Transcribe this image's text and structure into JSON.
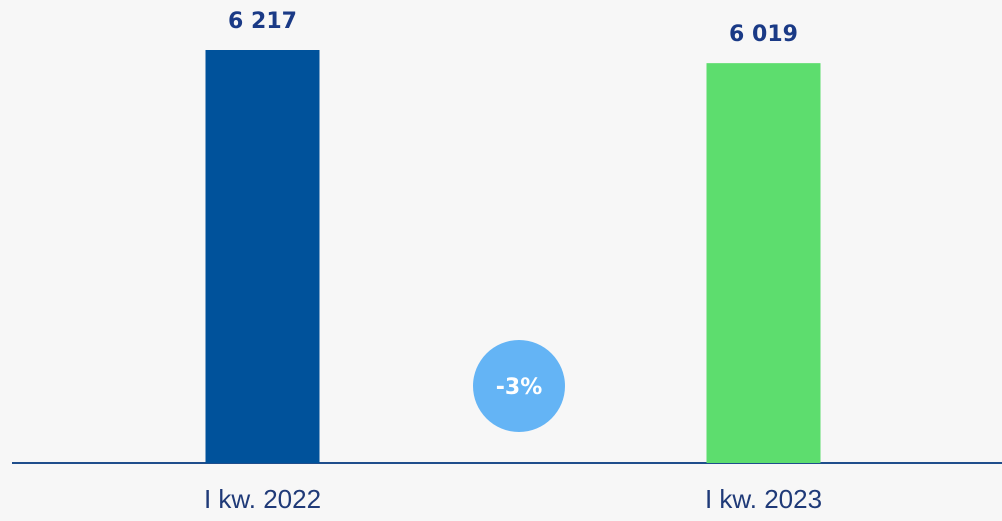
{
  "chart_data": {
    "type": "bar",
    "categories": [
      "I kw. 2022",
      "I kw. 2023"
    ],
    "values": [
      6217,
      6019
    ],
    "value_labels": [
      "6 217",
      "6 019"
    ],
    "colors": [
      "#00529b",
      "#5ddd6e"
    ],
    "annotation": "-3%"
  }
}
